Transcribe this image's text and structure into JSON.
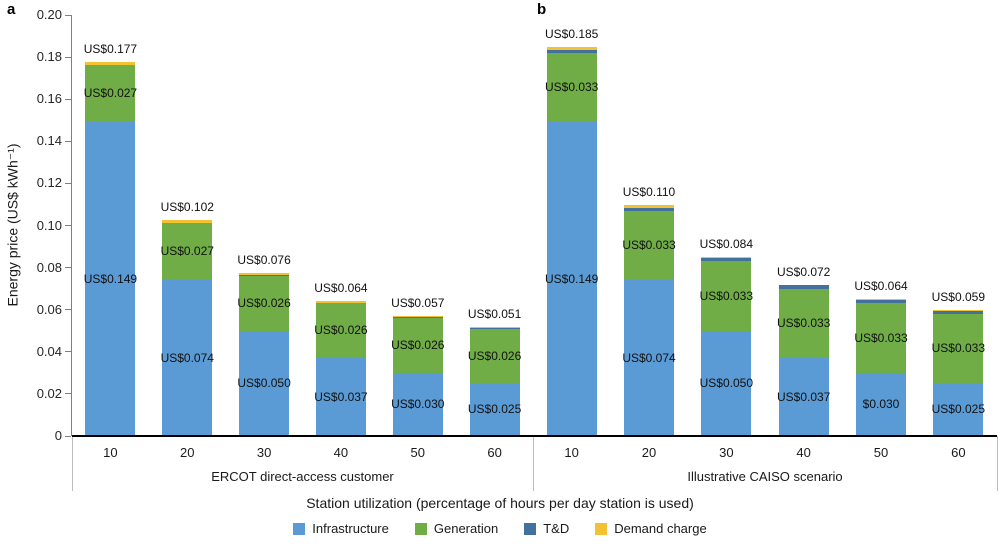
{
  "figure": {
    "ylabel": "Energy price (US$ kWh⁻¹)",
    "xlabel": "Station utilization (percentage of hours per day station is used)"
  },
  "chart_data": {
    "type": "bar",
    "stacked": true,
    "ylabel": "Energy price (US$ kWh⁻¹)",
    "xlabel": "Station utilization (percentage of hours per day station is used)",
    "ylim": [
      0,
      0.2
    ],
    "ytick_step": 0.02,
    "grid": false,
    "legend_position": "bottom",
    "segment_order": [
      "infrastructure",
      "generation",
      "tnd",
      "demand"
    ],
    "legend": [
      {
        "key": "infrastructure",
        "label": "Infrastructure",
        "color": "#5b9bd5"
      },
      {
        "key": "generation",
        "label": "Generation",
        "color": "#70ad47"
      },
      {
        "key": "tnd",
        "label": "T&D",
        "color": "#41719c"
      },
      {
        "key": "demand",
        "label": "Demand charge",
        "color": "#f2c232"
      }
    ],
    "panels": [
      {
        "label": "a",
        "group_label": "ERCOT direct-access customer",
        "categories": [
          "10",
          "20",
          "30",
          "40",
          "50",
          "60"
        ],
        "bars": [
          {
            "category": "10",
            "total_label": "US$0.177",
            "infrastructure": 0.149,
            "infrastructure_label": "US$0.149",
            "generation": 0.027,
            "generation_label": "US$0.027",
            "tnd": 0.0004,
            "demand": 0.0014
          },
          {
            "category": "20",
            "total_label": "US$0.102",
            "infrastructure": 0.074,
            "infrastructure_label": "US$0.074",
            "generation": 0.027,
            "generation_label": "US$0.027",
            "tnd": 0.0004,
            "demand": 0.0014
          },
          {
            "category": "30",
            "total_label": "US$0.076",
            "infrastructure": 0.05,
            "infrastructure_label": "US$0.050",
            "generation": 0.026,
            "generation_label": "US$0.026",
            "tnd": 0.0003,
            "demand": 0.0009
          },
          {
            "category": "40",
            "total_label": "US$0.064",
            "infrastructure": 0.037,
            "infrastructure_label": "US$0.037",
            "generation": 0.026,
            "generation_label": "US$0.026",
            "tnd": 0.0003,
            "demand": 0.0009
          },
          {
            "category": "50",
            "total_label": "US$0.057",
            "infrastructure": 0.03,
            "infrastructure_label": "US$0.030",
            "generation": 0.026,
            "generation_label": "US$0.026",
            "tnd": 0.0003,
            "demand": 0.0009
          },
          {
            "category": "60",
            "total_label": "US$0.051",
            "infrastructure": 0.025,
            "infrastructure_label": "US$0.025",
            "generation": 0.026,
            "generation_label": "US$0.026",
            "tnd": 0.0002,
            "demand": 0.0005
          }
        ]
      },
      {
        "label": "b",
        "group_label": "Illustrative CAISO scenario",
        "categories": [
          "10",
          "20",
          "30",
          "40",
          "50",
          "60"
        ],
        "bars": [
          {
            "category": "10",
            "total_label": "US$0.185",
            "infrastructure": 0.149,
            "infrastructure_label": "US$0.149",
            "generation": 0.033,
            "generation_label": "US$0.033",
            "tnd": 0.0015,
            "demand": 0.0013
          },
          {
            "category": "20",
            "total_label": "US$0.110",
            "infrastructure": 0.074,
            "infrastructure_label": "US$0.074",
            "generation": 0.033,
            "generation_label": "US$0.033",
            "tnd": 0.0015,
            "demand": 0.0013
          },
          {
            "category": "30",
            "total_label": "US$0.084",
            "infrastructure": 0.05,
            "infrastructure_label": "US$0.050",
            "generation": 0.033,
            "generation_label": "US$0.033",
            "tnd": 0.0015,
            "demand": 0.0004
          },
          {
            "category": "40",
            "total_label": "US$0.072",
            "infrastructure": 0.037,
            "infrastructure_label": "US$0.037",
            "generation": 0.033,
            "generation_label": "US$0.033",
            "tnd": 0.0015,
            "demand": 0.0004
          },
          {
            "category": "50",
            "total_label": "US$0.064",
            "infrastructure": 0.03,
            "infrastructure_label": "$0.030",
            "generation": 0.033,
            "generation_label": "US$0.033",
            "tnd": 0.0015,
            "demand": 0.0004
          },
          {
            "category": "60",
            "total_label": "US$0.059",
            "infrastructure": 0.025,
            "infrastructure_label": "US$0.025",
            "generation": 0.033,
            "generation_label": "US$0.033",
            "tnd": 0.0015,
            "demand": 0.0004
          }
        ]
      }
    ]
  }
}
